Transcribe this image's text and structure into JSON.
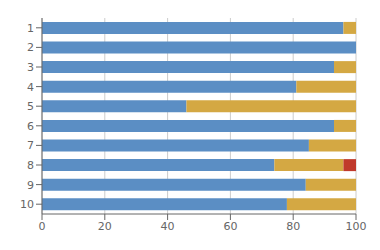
{
  "chart_data": {
    "type": "bar",
    "orientation": "horizontal",
    "stacked": true,
    "categories": [
      "1",
      "2",
      "3",
      "4",
      "5",
      "6",
      "7",
      "8",
      "9",
      "10"
    ],
    "series": [
      {
        "color": "#5B8EC4",
        "values": [
          96,
          100,
          93,
          81,
          46,
          93,
          85,
          74,
          84,
          78
        ]
      },
      {
        "color": "#D4A843",
        "values": [
          4,
          0,
          7,
          19,
          54,
          7,
          15,
          22,
          16,
          22
        ]
      },
      {
        "color": "#C0392B",
        "values": [
          0,
          0,
          0,
          0,
          0,
          0,
          0,
          4,
          0,
          0
        ]
      }
    ],
    "xlim": [
      0,
      100
    ],
    "xticks": [
      0,
      20,
      40,
      60,
      80,
      100
    ],
    "grid": true
  }
}
